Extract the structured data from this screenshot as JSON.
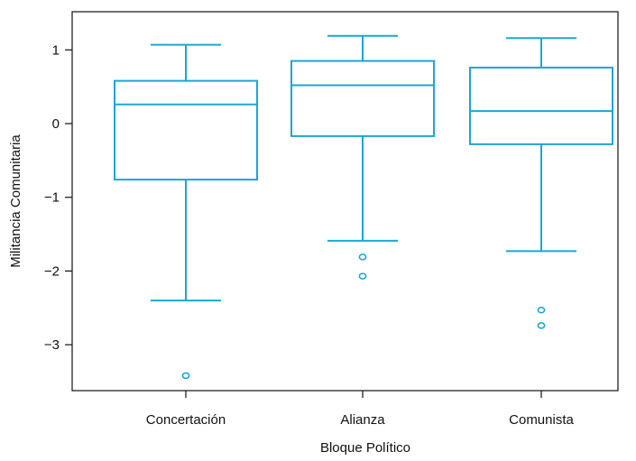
{
  "chart_data": {
    "type": "box",
    "xlabel": "Bloque Político",
    "ylabel": "Militancia Comunitaria",
    "ylim": [
      -3.6,
      1.5
    ],
    "yticks": [
      {
        "value": 1,
        "label": "1"
      },
      {
        "value": 0,
        "label": "0"
      },
      {
        "value": -1,
        "label": "−1"
      },
      {
        "value": -2,
        "label": "−2"
      },
      {
        "value": -3,
        "label": "−3"
      }
    ],
    "categories": [
      "Concertación",
      "Alianza",
      "Comunista"
    ],
    "boxes": [
      {
        "category": "Concertación",
        "whisker_low": -2.4,
        "q1": -0.76,
        "median": 0.26,
        "q3": 0.58,
        "whisker_high": 1.07,
        "outliers": [
          -3.42
        ]
      },
      {
        "category": "Alianza",
        "whisker_low": -1.59,
        "q1": -0.17,
        "median": 0.52,
        "q3": 0.85,
        "whisker_high": 1.19,
        "outliers": [
          -1.81,
          -2.07
        ]
      },
      {
        "category": "Comunista",
        "whisker_low": -1.73,
        "q1": -0.28,
        "median": 0.17,
        "q3": 0.76,
        "whisker_high": 1.16,
        "outliers": [
          -2.53,
          -2.74
        ]
      }
    ],
    "color": "#1aa7d4",
    "grid": false,
    "legend": "none"
  }
}
